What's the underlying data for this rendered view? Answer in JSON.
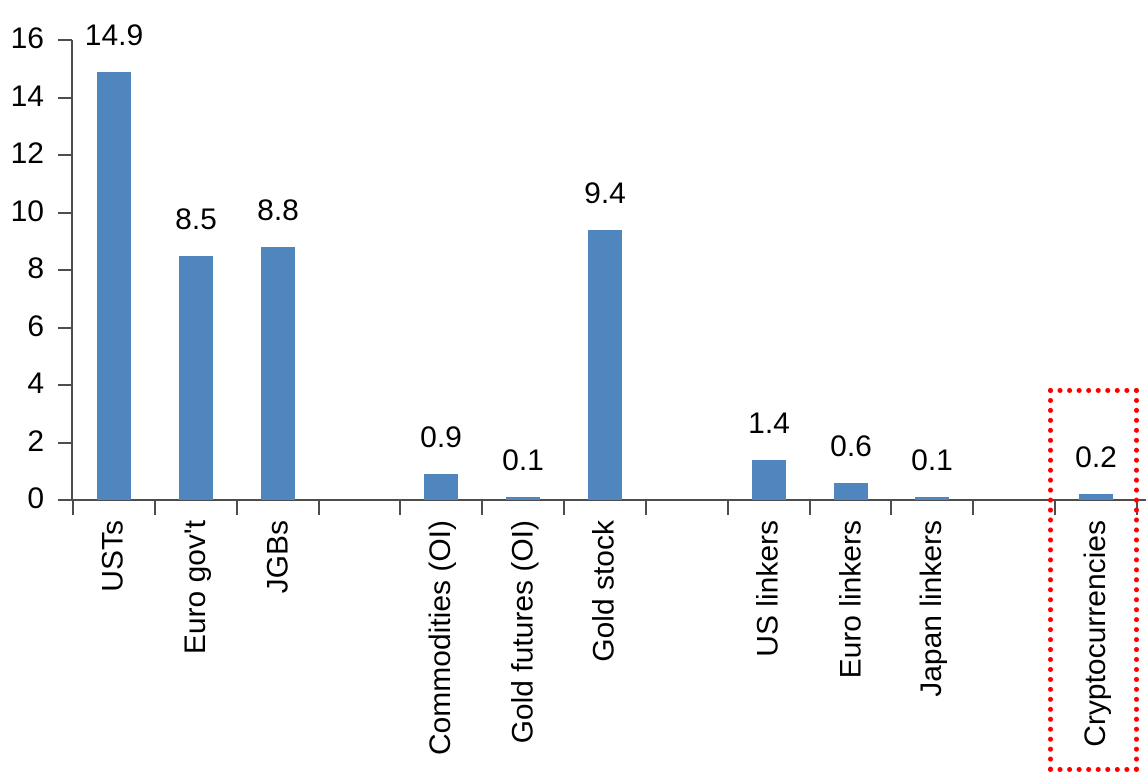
{
  "chart_data": {
    "type": "bar",
    "title": "",
    "xlabel": "",
    "ylabel": "",
    "ylim": [
      0,
      16
    ],
    "yticks": [
      0,
      2,
      4,
      6,
      8,
      10,
      12,
      14,
      16
    ],
    "grid": false,
    "legend": false,
    "slots": 13,
    "bar_color": "#4F86BE",
    "axis_color": "#4d4d4d",
    "text_color": "#000000",
    "highlight_color": "#FF0000",
    "series": [
      {
        "label": "USTs",
        "value": 14.9,
        "display": "14.9",
        "slot": 0,
        "highlighted": false
      },
      {
        "label": "Euro gov't",
        "value": 8.5,
        "display": "8.5",
        "slot": 1,
        "highlighted": false
      },
      {
        "label": "JGBs",
        "value": 8.8,
        "display": "8.8",
        "slot": 2,
        "highlighted": false
      },
      {
        "label": "Commodities (OI)",
        "value": 0.9,
        "display": "0.9",
        "slot": 4,
        "highlighted": false
      },
      {
        "label": "Gold futures (OI)",
        "value": 0.1,
        "display": "0.1",
        "slot": 5,
        "highlighted": false
      },
      {
        "label": "Gold stock",
        "value": 9.4,
        "display": "9.4",
        "slot": 6,
        "highlighted": false
      },
      {
        "label": "US linkers",
        "value": 1.4,
        "display": "1.4",
        "slot": 8,
        "highlighted": false
      },
      {
        "label": "Euro linkers",
        "value": 0.6,
        "display": "0.6",
        "slot": 9,
        "highlighted": false
      },
      {
        "label": "Japan linkers",
        "value": 0.1,
        "display": "0.1",
        "slot": 10,
        "highlighted": false
      },
      {
        "label": "Cryptocurrencies",
        "value": 0.2,
        "display": "0.2",
        "slot": 12,
        "highlighted": true
      }
    ],
    "highlight_box": {
      "around": "Cryptocurrencies",
      "style": "dotted"
    }
  }
}
